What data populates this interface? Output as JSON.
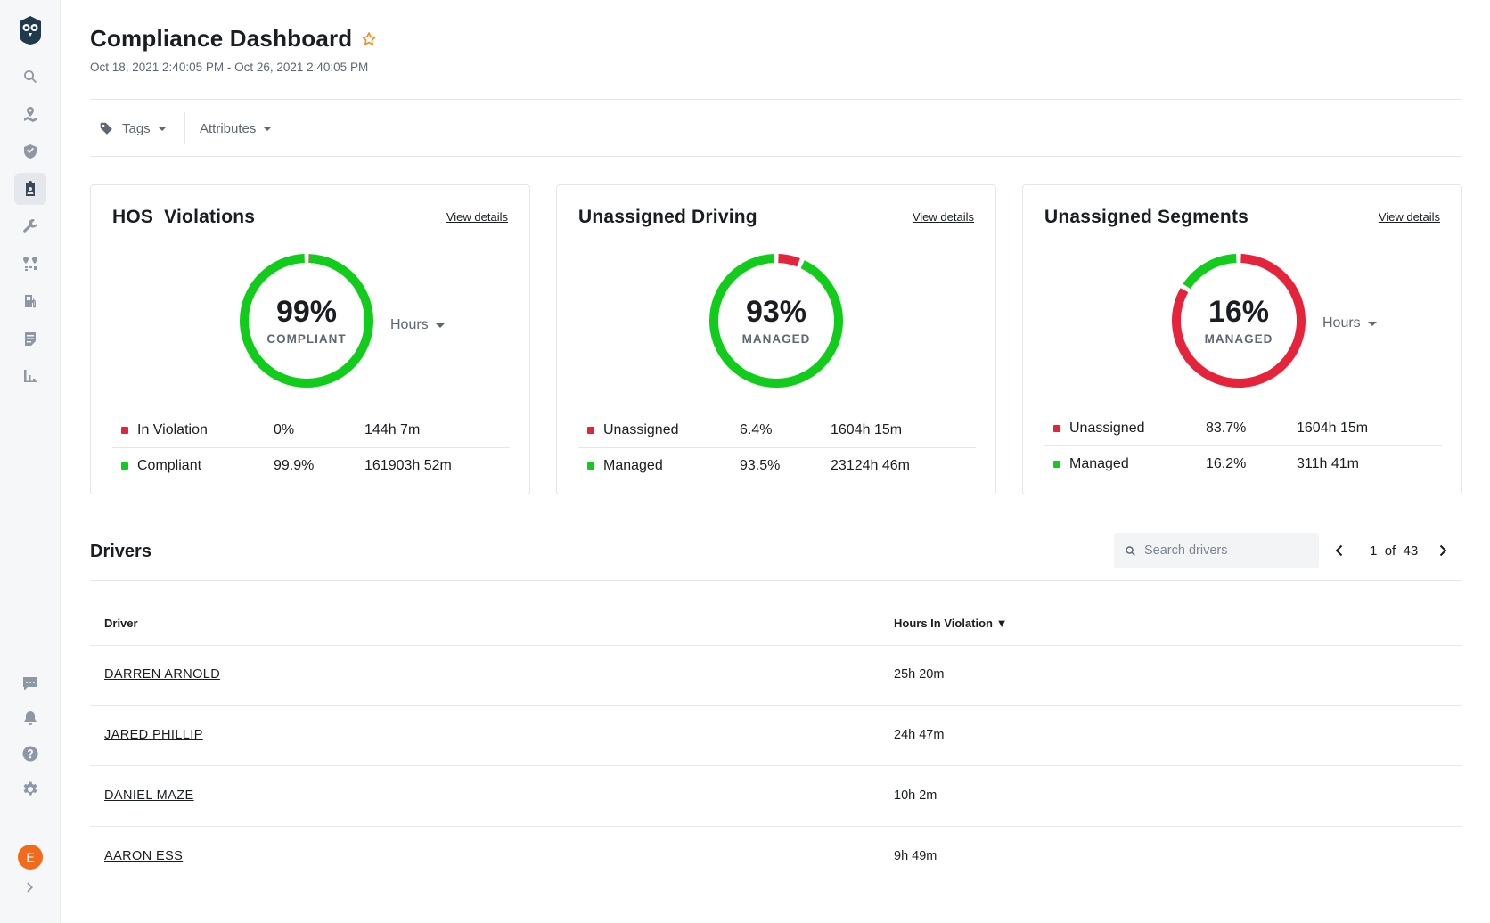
{
  "sidebar": {
    "items": [
      {
        "icon": "search-icon"
      },
      {
        "icon": "map-pin-icon"
      },
      {
        "icon": "shield-icon"
      },
      {
        "icon": "clipboard-badge-icon",
        "active": true
      },
      {
        "icon": "wrench-icon"
      },
      {
        "icon": "route-icon"
      },
      {
        "icon": "fuel-icon"
      },
      {
        "icon": "document-icon"
      },
      {
        "icon": "bar-chart-icon"
      }
    ],
    "bottom_items": [
      {
        "icon": "chat-icon"
      },
      {
        "icon": "bell-icon"
      },
      {
        "icon": "help-icon"
      },
      {
        "icon": "gear-icon"
      }
    ],
    "avatar_initial": "E",
    "expand_icon": "chevron-right-icon"
  },
  "header": {
    "title": "Compliance Dashboard",
    "date_range": "Oct 18, 2021 2:40:05 PM - Oct 26, 2021 2:40:05 PM"
  },
  "filters": {
    "tags_label": "Tags",
    "attributes_label": "Attributes"
  },
  "cards": [
    {
      "title": "HOS  Violations",
      "view_details": "View details",
      "percent": "99%",
      "percent_label": "COMPLIANT",
      "unit": "Hours",
      "rows": [
        {
          "name": "In Violation",
          "pct": "0%",
          "hours": "144h 7m"
        },
        {
          "name": "Compliant",
          "pct": "99.9%",
          "hours": "161903h 52m"
        }
      ],
      "ring": {
        "red_fraction": 0.001,
        "green_fraction": 0.999
      }
    },
    {
      "title": "Unassigned Driving",
      "view_details": "View details",
      "percent": "93%",
      "percent_label": "MANAGED",
      "rows": [
        {
          "name": "Unassigned",
          "pct": "6.4%",
          "hours": "1604h 15m"
        },
        {
          "name": "Managed",
          "pct": "93.5%",
          "hours": "23124h 46m"
        }
      ],
      "ring": {
        "red_fraction": 0.064,
        "green_fraction": 0.935
      }
    },
    {
      "title": "Unassigned Segments",
      "view_details": "View details",
      "percent": "16%",
      "percent_label": "MANAGED",
      "unit": "Hours",
      "rows": [
        {
          "name": "Unassigned",
          "pct": "83.7%",
          "hours": "1604h 15m"
        },
        {
          "name": "Managed",
          "pct": "16.2%",
          "hours": "311h 41m"
        }
      ],
      "ring": {
        "red_fraction": 0.837,
        "green_fraction": 0.162
      }
    }
  ],
  "drivers": {
    "title": "Drivers",
    "search_placeholder": "Search drivers",
    "pager": {
      "current": "1",
      "of": "of",
      "total": "43"
    },
    "columns": [
      "Driver",
      "Hours In Violation ▼"
    ],
    "rows": [
      {
        "driver": "DARREN ARNOLD",
        "hours": "25h 20m"
      },
      {
        "driver": "JARED PHILLIP",
        "hours": "24h 47m"
      },
      {
        "driver": "DANIEL MAZE",
        "hours": "10h 2m"
      },
      {
        "driver": "AARON ESS",
        "hours": "9h 49m"
      }
    ]
  },
  "colors": {
    "green": "#12cc1b",
    "red": "#e5243b",
    "accent_star": "#f28c1d",
    "avatar": "#f26b1d"
  }
}
